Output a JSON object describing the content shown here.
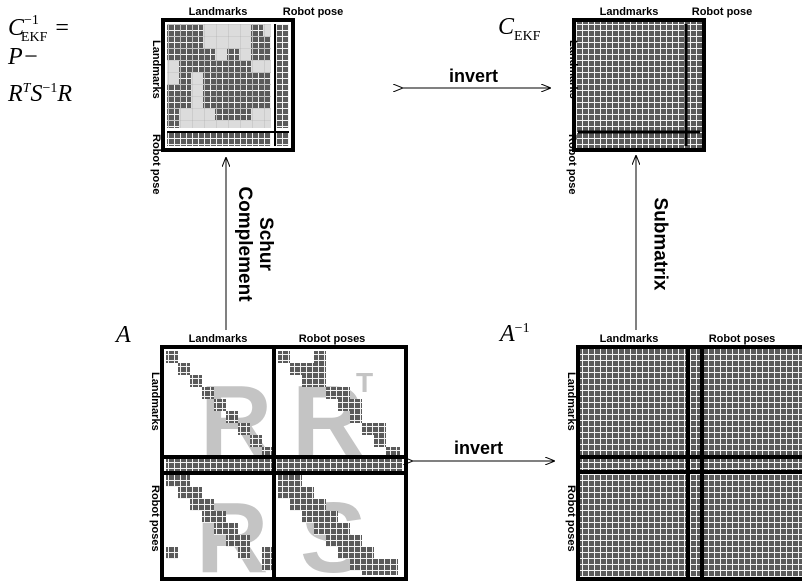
{
  "headings": {
    "landmarks": "Landmarks",
    "robot_pose": "Robot pose",
    "robot_poses": "Robot poses"
  },
  "math": {
    "c_ekf_inv_base": "C",
    "c_ekf_inv_sup": "−1",
    "c_ekf_inv_sub": "EKF",
    "c_ekf_inv_rhs": "=",
    "c_ekf_inv_line2": "P−",
    "c_ekf_inv_line3_r": "R",
    "c_ekf_inv_line3_t": "T",
    "c_ekf_inv_line3_s": "S",
    "c_ekf_inv_line3_sinv": "−1",
    "c_ekf_inv_line3_r2": "R",
    "c_ekf_base": "C",
    "c_ekf_sub": "EKF",
    "a": "A",
    "a_inv_base": "A",
    "a_inv_sup": "−1"
  },
  "operations": {
    "invert_top": "invert",
    "invert_bottom": "invert",
    "schur_line1": "Schur",
    "schur_line2": "Complement",
    "submatrix": "Submatrix"
  },
  "block_letters": {
    "r": "R",
    "rt_base": "R",
    "rt_sup": "T",
    "bl": "R",
    "s": "S"
  },
  "colors": {
    "filled_cell": "#5a5a5a",
    "grid_line": "#ffffff",
    "light_cell": "#dcdcdc",
    "block_letter": "#c4c4c4",
    "border": "#000000"
  }
}
